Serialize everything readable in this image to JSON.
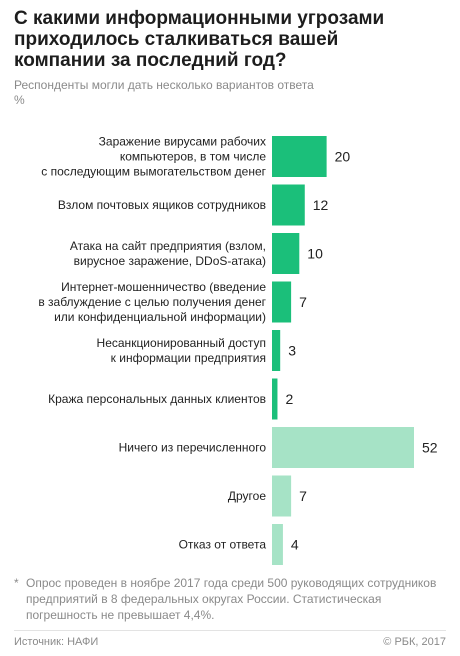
{
  "title": "С какими информационными угрозами приходилось сталкиваться вашей компании за последний год?",
  "subtitle": "Респонденты могли дать несколько вариантов ответа",
  "unit": "%",
  "chart_data": {
    "type": "bar",
    "orientation": "horizontal",
    "categories": [
      [
        "Заражение вирусами рабочих",
        "компьютеров, в том числе",
        "с последующим вымогательством денег"
      ],
      [
        "Взлом почтовых ящиков сотрудников"
      ],
      [
        "Атака на сайт предприятия (взлом,",
        "вирусное заражение, DDoS-атака)"
      ],
      [
        "Интернет-мошенничество (введение",
        "в заблуждение с целью получения денег",
        "или конфиденциальной информации)"
      ],
      [
        "Несанкционированный доступ",
        "к информации предприятия"
      ],
      [
        "Кража персональных данных клиентов"
      ],
      [
        "Ничего из перечисленного"
      ],
      [
        "Другое"
      ],
      [
        "Отказ от ответа"
      ]
    ],
    "values": [
      20,
      12,
      10,
      7,
      3,
      2,
      52,
      7,
      4
    ],
    "value_labels": [
      "20",
      "12",
      "10",
      "7",
      "3",
      "2",
      "52",
      "7",
      "4"
    ],
    "groups": [
      "threat",
      "threat",
      "threat",
      "threat",
      "threat",
      "threat",
      "other",
      "other",
      "other"
    ],
    "colors": {
      "threat": "#1bbf7a",
      "other": "#a6e3c6"
    },
    "xlim": [
      0,
      52
    ]
  },
  "footnote": {
    "mark": "*",
    "text": "Опрос проведен в ноябре 2017 года среди 500 руководящих сотрудников предприятий в 8 федеральных округах России. Статистическая погрешность не превышает 4,4%."
  },
  "source": "Источник: НАФИ",
  "copyright": "© РБК, 2017"
}
